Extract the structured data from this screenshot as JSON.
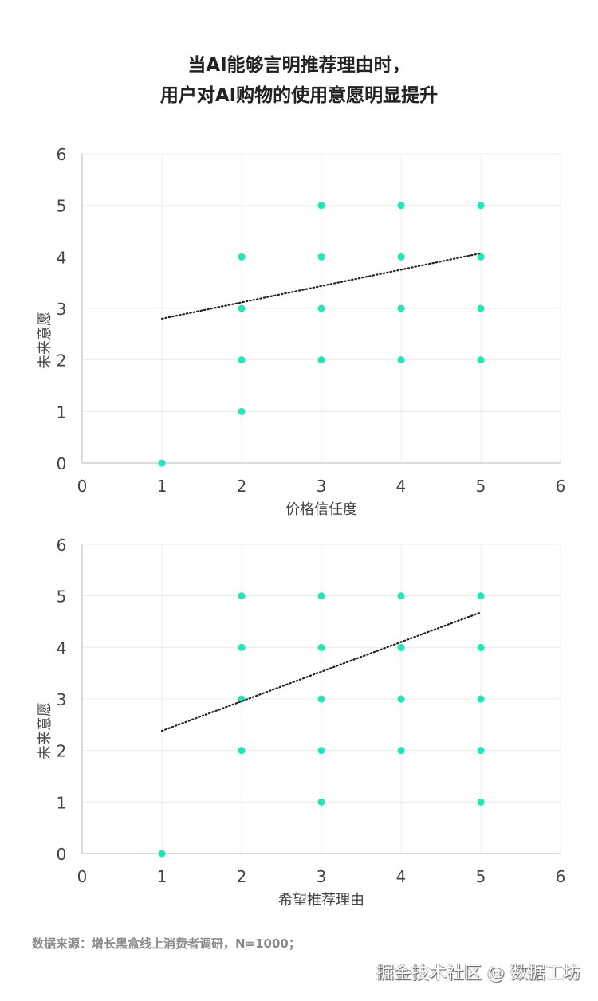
{
  "title": [
    "当AI能够言明推荐理由时，",
    "用户对AI购物的使用意愿明显提升"
  ],
  "chart_data": [
    {
      "type": "scatter",
      "xlabel": "价格信任度",
      "ylabel": "未来意愿",
      "xlim": [
        0,
        6
      ],
      "ylim": [
        0,
        6
      ],
      "xticks": [
        "0",
        "1",
        "2",
        "3",
        "4",
        "5",
        "6"
      ],
      "yticks": [
        "0",
        "1",
        "2",
        "3",
        "4",
        "5",
        "6"
      ],
      "grid": true,
      "points": [
        [
          1,
          0
        ],
        [
          2,
          1
        ],
        [
          2,
          2
        ],
        [
          2,
          3
        ],
        [
          2,
          4
        ],
        [
          3,
          2
        ],
        [
          3,
          3
        ],
        [
          3,
          4
        ],
        [
          3,
          5
        ],
        [
          4,
          2
        ],
        [
          4,
          3
        ],
        [
          4,
          4
        ],
        [
          4,
          5
        ],
        [
          5,
          2
        ],
        [
          5,
          3
        ],
        [
          5,
          4
        ],
        [
          5,
          5
        ]
      ],
      "trendline": {
        "style": "dotted",
        "from": [
          1,
          2.8
        ],
        "to": [
          5,
          4.07
        ]
      },
      "color": "#1de9b6"
    },
    {
      "type": "scatter",
      "xlabel": "希望推荐理由",
      "ylabel": "未来意愿",
      "xlim": [
        0,
        6
      ],
      "ylim": [
        0,
        6
      ],
      "xticks": [
        "0",
        "1",
        "2",
        "3",
        "4",
        "5",
        "6"
      ],
      "yticks": [
        "0",
        "1",
        "2",
        "3",
        "4",
        "5",
        "6"
      ],
      "grid": true,
      "points": [
        [
          1,
          0
        ],
        [
          2,
          2
        ],
        [
          2,
          3
        ],
        [
          2,
          4
        ],
        [
          2,
          5
        ],
        [
          3,
          1
        ],
        [
          3,
          2
        ],
        [
          3,
          3
        ],
        [
          3,
          4
        ],
        [
          3,
          5
        ],
        [
          4,
          2
        ],
        [
          4,
          3
        ],
        [
          4,
          4
        ],
        [
          4,
          5
        ],
        [
          5,
          1
        ],
        [
          5,
          2
        ],
        [
          5,
          3
        ],
        [
          5,
          4
        ],
        [
          5,
          5
        ]
      ],
      "trendline": {
        "style": "dotted",
        "from": [
          1,
          2.38
        ],
        "to": [
          5,
          4.68
        ]
      },
      "color": "#1de9b6"
    }
  ],
  "source": "数据来源：增长黑盒线上消费者调研，N=1000；",
  "watermark": "掘金技术社区 @ 数据工坊"
}
